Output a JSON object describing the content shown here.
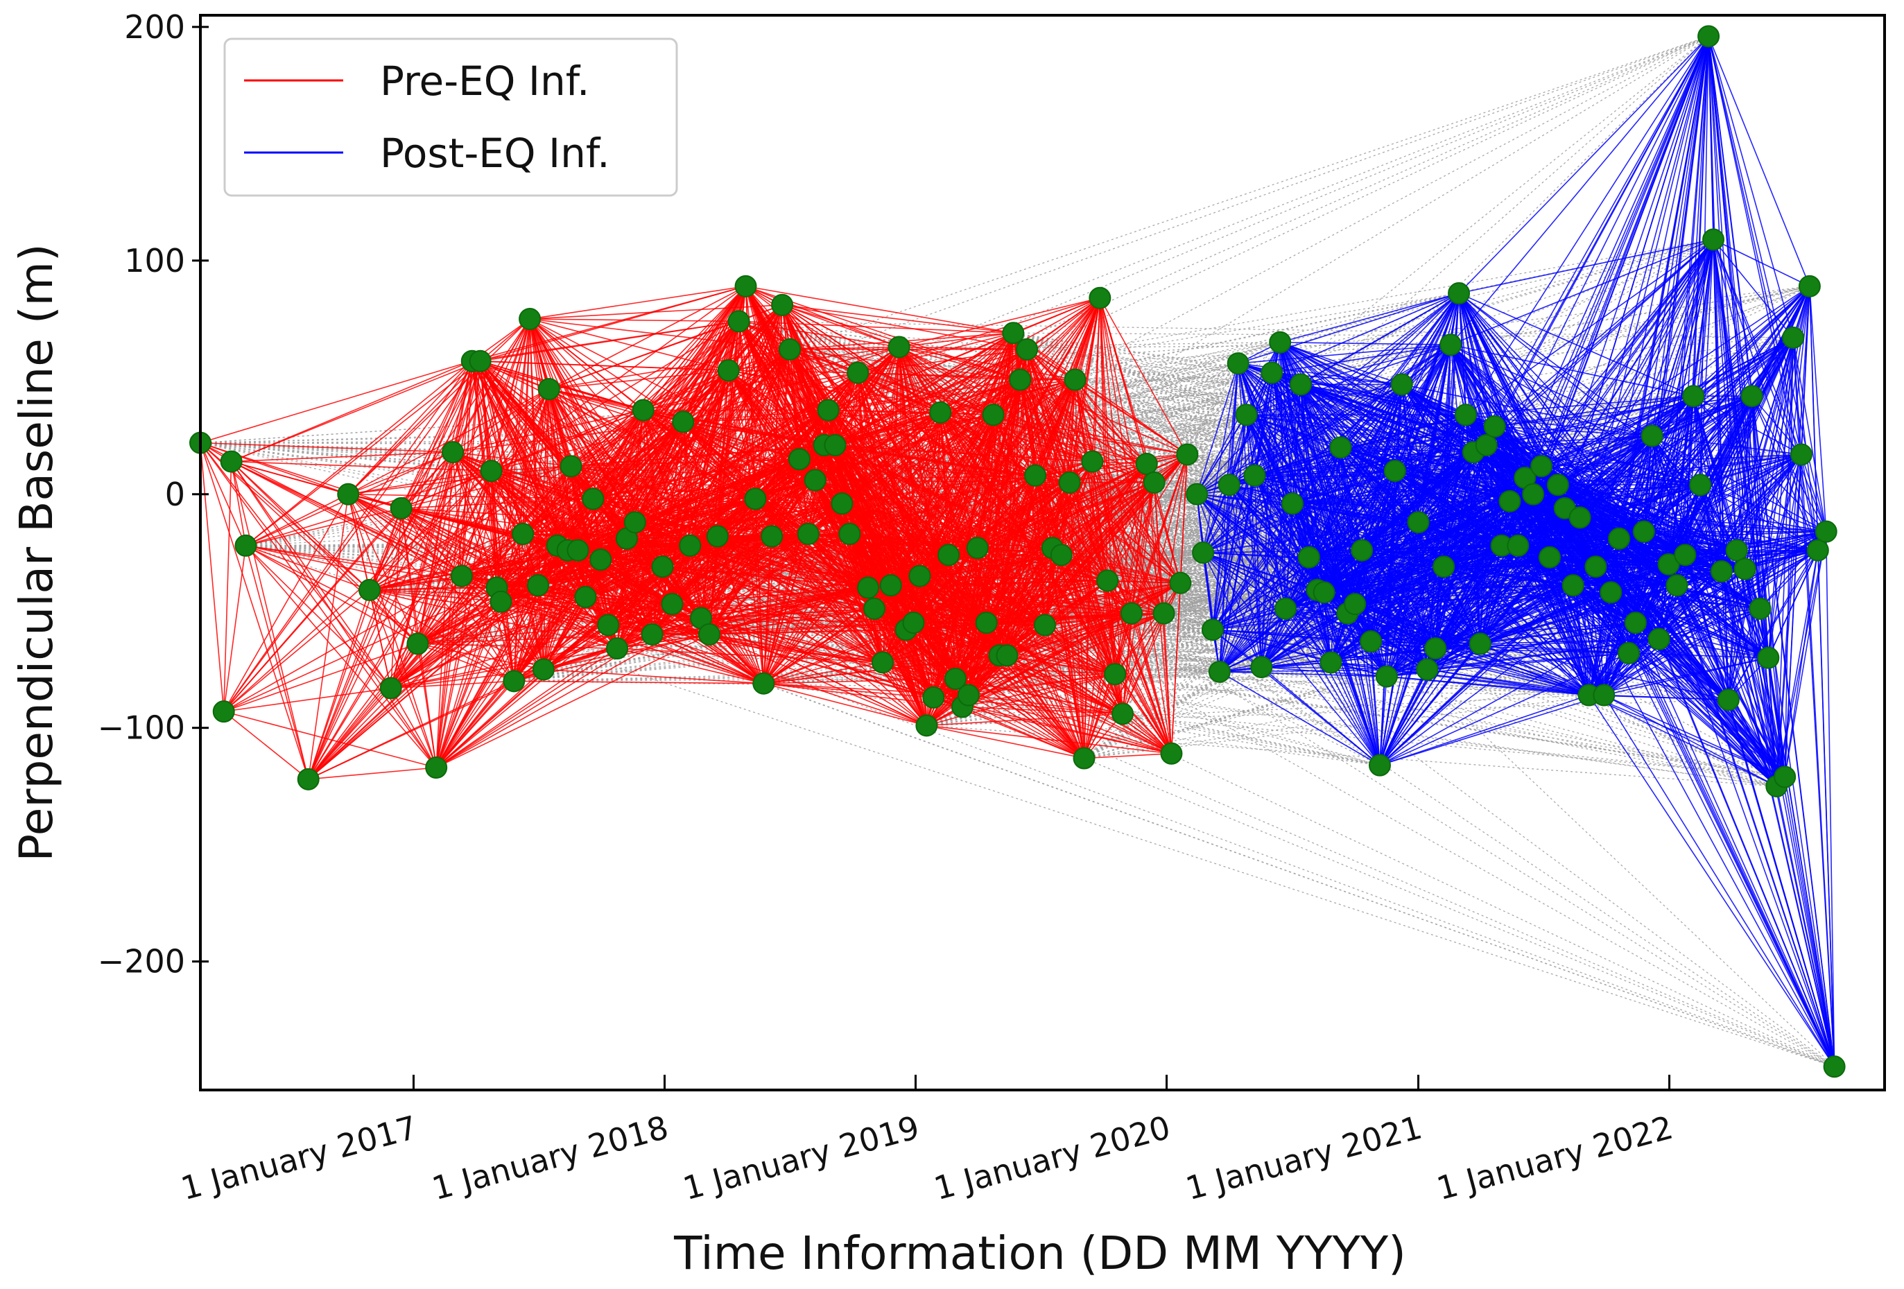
{
  "chart_data": {
    "type": "line",
    "xlabel": "Time Information (DD MM YYYY)",
    "ylabel": "Perpendicular Baseline (m)",
    "ylim": [
      -255,
      205
    ],
    "xlim": [
      "2016-02-26",
      "2022-11-10"
    ],
    "y_ticks": [
      200,
      100,
      0,
      -100,
      -200
    ],
    "y_tick_labels": [
      "200",
      "100",
      "0",
      "−100",
      "−200"
    ],
    "x_ticks": [
      "2017-01-01",
      "2018-01-01",
      "2019-01-01",
      "2020-01-01",
      "2021-01-01",
      "2022-01-01"
    ],
    "x_tick_labels": [
      "1 January 2017",
      "1 January 2018",
      "1 January 2019",
      "1 January 2020",
      "1 January 2021",
      "1 January 2022"
    ],
    "legend": {
      "position": "top-left",
      "entries": [
        {
          "label": "Pre-EQ Inf.",
          "color": "#ff0000"
        },
        {
          "label": "Post-EQ Inf.",
          "color": "#0000ff"
        }
      ]
    },
    "colors": {
      "pre": "#ff0000",
      "post": "#0000ff",
      "cross": "#a0a0a0",
      "marker": "#138013",
      "marker_edge": "#0b6b0b"
    },
    "series": [
      {
        "name": "Pre-EQ Inf.",
        "color": "#ff0000"
      },
      {
        "name": "Post-EQ Inf.",
        "color": "#0000ff"
      }
    ],
    "acquisitions_pre": [
      [
        "2016-02-26",
        22
      ],
      [
        "2016-03-31",
        -93
      ],
      [
        "2016-04-11",
        14
      ],
      [
        "2016-05-02",
        -22
      ],
      [
        "2016-08-01",
        -122
      ],
      [
        "2016-09-28",
        0
      ],
      [
        "2016-10-29",
        -41
      ],
      [
        "2016-11-29",
        -83
      ],
      [
        "2016-12-14",
        -6
      ],
      [
        "2017-01-07",
        -64
      ],
      [
        "2017-02-03",
        -117
      ],
      [
        "2017-02-27",
        18
      ],
      [
        "2017-03-12",
        -35
      ],
      [
        "2017-03-27",
        57
      ],
      [
        "2017-04-08",
        57
      ],
      [
        "2017-04-24",
        10
      ],
      [
        "2017-05-02",
        -40
      ],
      [
        "2017-05-08",
        -46
      ],
      [
        "2017-05-27",
        -80
      ],
      [
        "2017-06-09",
        -17
      ],
      [
        "2017-06-19",
        75
      ],
      [
        "2017-07-01",
        -39
      ],
      [
        "2017-07-09",
        -75
      ],
      [
        "2017-07-17",
        45
      ],
      [
        "2017-07-29",
        -22
      ],
      [
        "2017-08-13",
        -24
      ],
      [
        "2017-08-18",
        12
      ],
      [
        "2017-08-28",
        -24
      ],
      [
        "2017-09-08",
        -44
      ],
      [
        "2017-09-19",
        -2
      ],
      [
        "2017-09-30",
        -28
      ],
      [
        "2017-10-11",
        -56
      ],
      [
        "2017-10-24",
        -66
      ],
      [
        "2017-11-07",
        -19
      ],
      [
        "2017-11-19",
        -12
      ],
      [
        "2017-12-01",
        36
      ],
      [
        "2017-12-14",
        -60
      ],
      [
        "2017-12-29",
        -31
      ],
      [
        "2018-01-12",
        -47
      ],
      [
        "2018-01-28",
        31
      ],
      [
        "2018-02-07",
        -22
      ],
      [
        "2018-02-23",
        -53
      ],
      [
        "2018-03-07",
        -60
      ],
      [
        "2018-03-19",
        -18
      ],
      [
        "2018-04-04",
        53
      ],
      [
        "2018-04-19",
        74
      ],
      [
        "2018-04-29",
        89
      ],
      [
        "2018-05-13",
        -2
      ],
      [
        "2018-05-25",
        -81
      ],
      [
        "2018-06-06",
        -18
      ],
      [
        "2018-06-21",
        81
      ],
      [
        "2018-07-02",
        62
      ],
      [
        "2018-07-16",
        15
      ],
      [
        "2018-07-29",
        -17
      ],
      [
        "2018-08-08",
        6
      ],
      [
        "2018-08-21",
        21
      ],
      [
        "2018-08-27",
        36
      ],
      [
        "2018-09-06",
        21
      ],
      [
        "2018-09-16",
        -4
      ],
      [
        "2018-09-27",
        -17
      ],
      [
        "2018-10-09",
        52
      ],
      [
        "2018-10-24",
        -40
      ],
      [
        "2018-11-02",
        -49
      ],
      [
        "2018-11-14",
        -72
      ],
      [
        "2018-11-26",
        -39
      ],
      [
        "2018-12-08",
        63
      ],
      [
        "2018-12-18",
        -58
      ],
      [
        "2018-12-29",
        -55
      ],
      [
        "2019-01-07",
        -35
      ],
      [
        "2019-01-17",
        -99
      ],
      [
        "2019-01-27",
        -87
      ],
      [
        "2019-02-06",
        35
      ],
      [
        "2019-02-18",
        -26
      ],
      [
        "2019-02-28",
        -79
      ],
      [
        "2019-03-10",
        -91
      ],
      [
        "2019-03-19",
        -86
      ],
      [
        "2019-04-01",
        -23
      ],
      [
        "2019-04-14",
        -55
      ],
      [
        "2019-04-24",
        34
      ],
      [
        "2019-05-03",
        -69
      ],
      [
        "2019-05-14",
        -69
      ],
      [
        "2019-05-23",
        69
      ],
      [
        "2019-06-02",
        49
      ],
      [
        "2019-06-12",
        62
      ],
      [
        "2019-06-24",
        8
      ],
      [
        "2019-07-08",
        -56
      ],
      [
        "2019-07-19",
        -23
      ],
      [
        "2019-08-01",
        -26
      ],
      [
        "2019-08-13",
        5
      ],
      [
        "2019-08-21",
        49
      ],
      [
        "2019-09-03",
        -113
      ],
      [
        "2019-09-15",
        14
      ],
      [
        "2019-09-26",
        84
      ],
      [
        "2019-10-07",
        -37
      ],
      [
        "2019-10-18",
        -77
      ],
      [
        "2019-10-29",
        -94
      ],
      [
        "2019-11-11",
        -51
      ],
      [
        "2019-12-03",
        13
      ],
      [
        "2019-12-14",
        5
      ],
      [
        "2019-12-28",
        -51
      ],
      [
        "2020-01-08",
        -111
      ],
      [
        "2020-01-21",
        -38
      ],
      [
        "2020-01-31",
        17
      ]
    ],
    "acquisitions_post": [
      [
        "2020-02-14",
        0
      ],
      [
        "2020-02-23",
        -25
      ],
      [
        "2020-03-08",
        -58
      ],
      [
        "2020-03-18",
        -76
      ],
      [
        "2020-04-01",
        4
      ],
      [
        "2020-04-14",
        56
      ],
      [
        "2020-04-26",
        34
      ],
      [
        "2020-05-08",
        8
      ],
      [
        "2020-05-18",
        -74
      ],
      [
        "2020-06-02",
        52
      ],
      [
        "2020-06-14",
        65
      ],
      [
        "2020-06-22",
        -49
      ],
      [
        "2020-07-02",
        -4
      ],
      [
        "2020-07-14",
        47
      ],
      [
        "2020-07-26",
        -27
      ],
      [
        "2020-08-07",
        -41
      ],
      [
        "2020-08-17",
        -42
      ],
      [
        "2020-08-27",
        -72
      ],
      [
        "2020-09-10",
        20
      ],
      [
        "2020-09-20",
        -51
      ],
      [
        "2020-10-01",
        -47
      ],
      [
        "2020-10-11",
        -24
      ],
      [
        "2020-10-24",
        -63
      ],
      [
        "2020-11-06",
        -116
      ],
      [
        "2020-11-16",
        -78
      ],
      [
        "2020-11-28",
        10
      ],
      [
        "2020-12-08",
        47
      ],
      [
        "2021-01-01",
        -12
      ],
      [
        "2021-01-14",
        -75
      ],
      [
        "2021-01-26",
        -66
      ],
      [
        "2021-02-07",
        -31
      ],
      [
        "2021-02-17",
        64
      ],
      [
        "2021-03-01",
        86
      ],
      [
        "2021-03-11",
        34
      ],
      [
        "2021-03-22",
        18
      ],
      [
        "2021-04-01",
        -64
      ],
      [
        "2021-04-10",
        21
      ],
      [
        "2021-04-22",
        29
      ],
      [
        "2021-05-02",
        -22
      ],
      [
        "2021-05-14",
        -3
      ],
      [
        "2021-05-26",
        -22
      ],
      [
        "2021-06-05",
        7
      ],
      [
        "2021-06-17",
        0
      ],
      [
        "2021-06-29",
        12
      ],
      [
        "2021-07-11",
        -27
      ],
      [
        "2021-07-23",
        4
      ],
      [
        "2021-08-02",
        -6
      ],
      [
        "2021-08-14",
        -39
      ],
      [
        "2021-08-24",
        -10
      ],
      [
        "2021-09-06",
        -86
      ],
      [
        "2021-09-16",
        -31
      ],
      [
        "2021-09-28",
        -86
      ],
      [
        "2021-10-08",
        -42
      ],
      [
        "2021-10-20",
        -19
      ],
      [
        "2021-11-03",
        -68
      ],
      [
        "2021-11-13",
        -55
      ],
      [
        "2021-11-25",
        -16
      ],
      [
        "2021-12-07",
        25
      ],
      [
        "2021-12-17",
        -62
      ],
      [
        "2021-12-31",
        -30
      ],
      [
        "2022-01-12",
        -39
      ],
      [
        "2022-01-24",
        -26
      ],
      [
        "2022-02-05",
        42
      ],
      [
        "2022-02-15",
        4
      ],
      [
        "2022-02-27",
        196
      ],
      [
        "2022-03-06",
        109
      ],
      [
        "2022-03-18",
        -33
      ],
      [
        "2022-03-28",
        -88
      ],
      [
        "2022-04-09",
        -24
      ],
      [
        "2022-04-21",
        -32
      ],
      [
        "2022-05-01",
        42
      ],
      [
        "2022-05-13",
        -49
      ],
      [
        "2022-05-25",
        -70
      ],
      [
        "2022-06-06",
        -125
      ],
      [
        "2022-06-18",
        -121
      ],
      [
        "2022-06-30",
        67
      ],
      [
        "2022-07-12",
        17
      ],
      [
        "2022-07-24",
        89
      ],
      [
        "2022-08-05",
        -24
      ],
      [
        "2022-08-17",
        -16
      ],
      [
        "2022-08-29",
        -245
      ]
    ],
    "network_rule": "Red lines connect Pre-EQ acquisitions within roughly one year of each other; blue lines connect Post-EQ acquisitions within roughly one year; grey dotted lines connect pairs spanning the earthquake."
  }
}
